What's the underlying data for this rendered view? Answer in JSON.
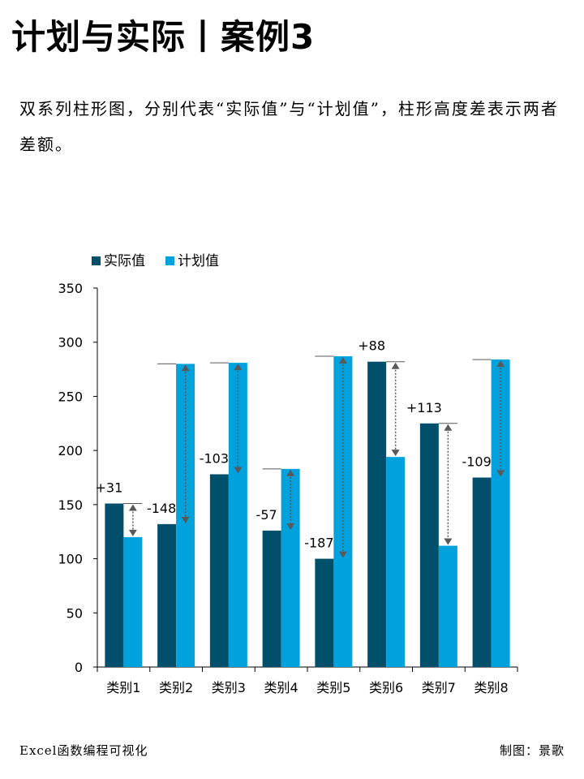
{
  "header": {
    "title": "计划与实际丨案例3",
    "description": "双系列柱形图，分别代表“实际值”与“计划值”，柱形高度差表示两者差额。"
  },
  "footer": {
    "left": "Excel函数编程可视化",
    "right": "制图：景歌"
  },
  "colors": {
    "actual": "#00506c",
    "plan": "#00a2de",
    "axis": "#000000",
    "arrow": "#595959"
  },
  "chart_data": {
    "type": "bar",
    "categories": [
      "类别1",
      "类别2",
      "类别3",
      "类别4",
      "类别5",
      "类别6",
      "类别7",
      "类别8"
    ],
    "series": [
      {
        "name": "实际值",
        "values": [
          151,
          132,
          178,
          126,
          100,
          282,
          225,
          175
        ]
      },
      {
        "name": "计划值",
        "values": [
          120,
          280,
          281,
          183,
          287,
          194,
          112,
          284
        ]
      }
    ],
    "difference_labels": [
      "+31",
      "-148",
      "-103",
      "-57",
      "-187",
      "+88",
      "+113",
      "-109"
    ],
    "ylim": [
      0,
      350
    ],
    "yticks": [
      0,
      50,
      100,
      150,
      200,
      250,
      300,
      350
    ],
    "legend_position": "top-left",
    "grid": false
  }
}
